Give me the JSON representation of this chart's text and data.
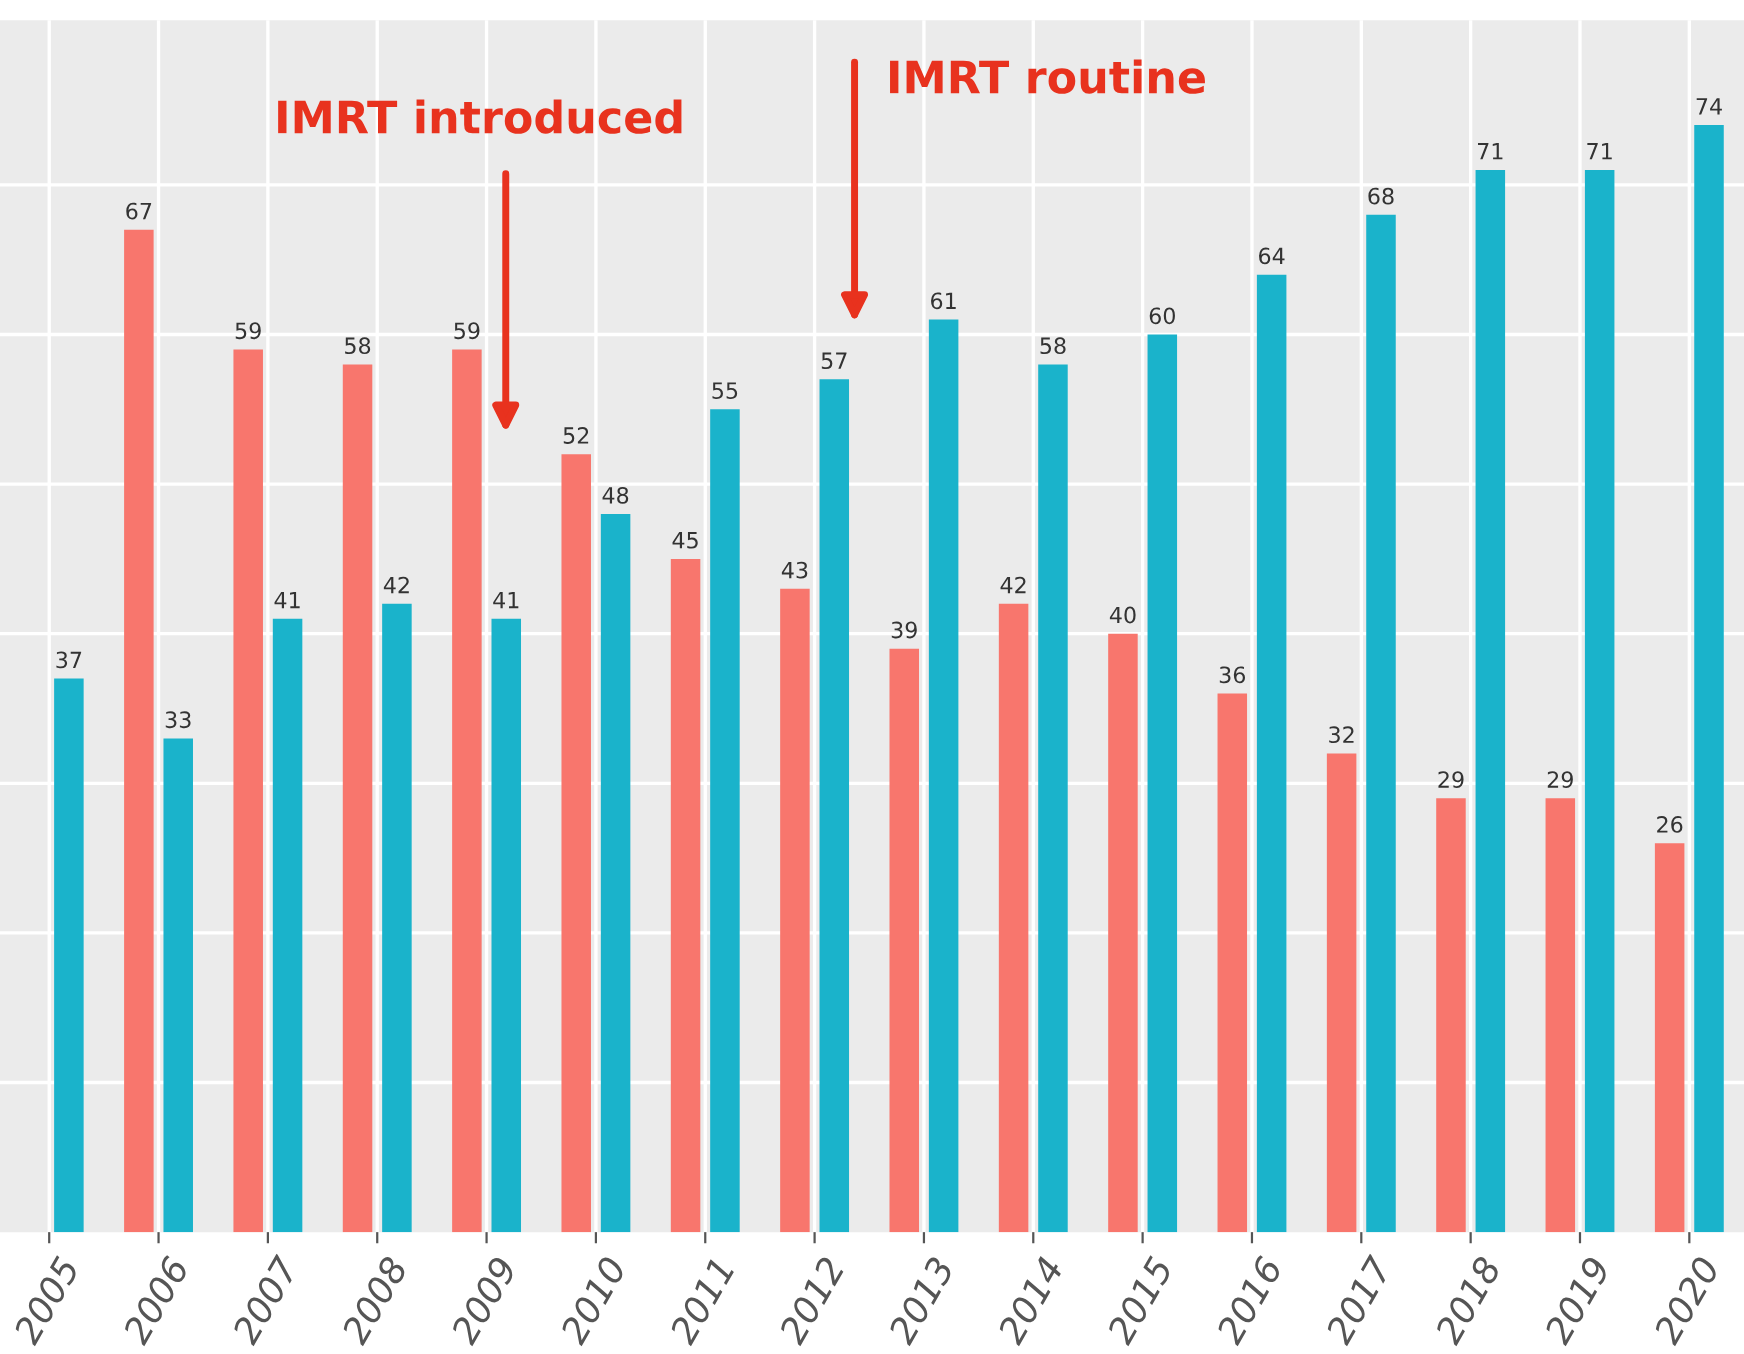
{
  "chart_data": {
    "type": "bar",
    "categories": [
      "2005",
      "2006",
      "2007",
      "2008",
      "2009",
      "2010",
      "2011",
      "2012",
      "2013",
      "2014",
      "2015",
      "2016",
      "2017",
      "2018",
      "2019",
      "2020"
    ],
    "series": [
      {
        "color": "#f8766d",
        "values": [
          null,
          67,
          59,
          58,
          59,
          52,
          45,
          43,
          39,
          42,
          40,
          36,
          32,
          29,
          29,
          26
        ]
      },
      {
        "color": "#1ab3cb",
        "values": [
          37,
          33,
          41,
          42,
          41,
          48,
          55,
          57,
          61,
          58,
          60,
          64,
          68,
          71,
          71,
          74
        ]
      }
    ],
    "data_labels": true,
    "ylim": [
      0,
      81
    ],
    "yticks": [
      {
        "value": 10,
        "label": null
      },
      {
        "value": 20,
        "label": null
      },
      {
        "value": 30,
        "label": null
      },
      {
        "value": 40,
        "label": null
      },
      {
        "value": 50,
        "label": null
      },
      {
        "value": 60,
        "label": null
      },
      {
        "value": 70,
        "label": null
      }
    ],
    "tick_labels": "x",
    "grid": true,
    "annotations": [
      "IMRT introduced",
      "IMRT routine"
    ]
  }
}
